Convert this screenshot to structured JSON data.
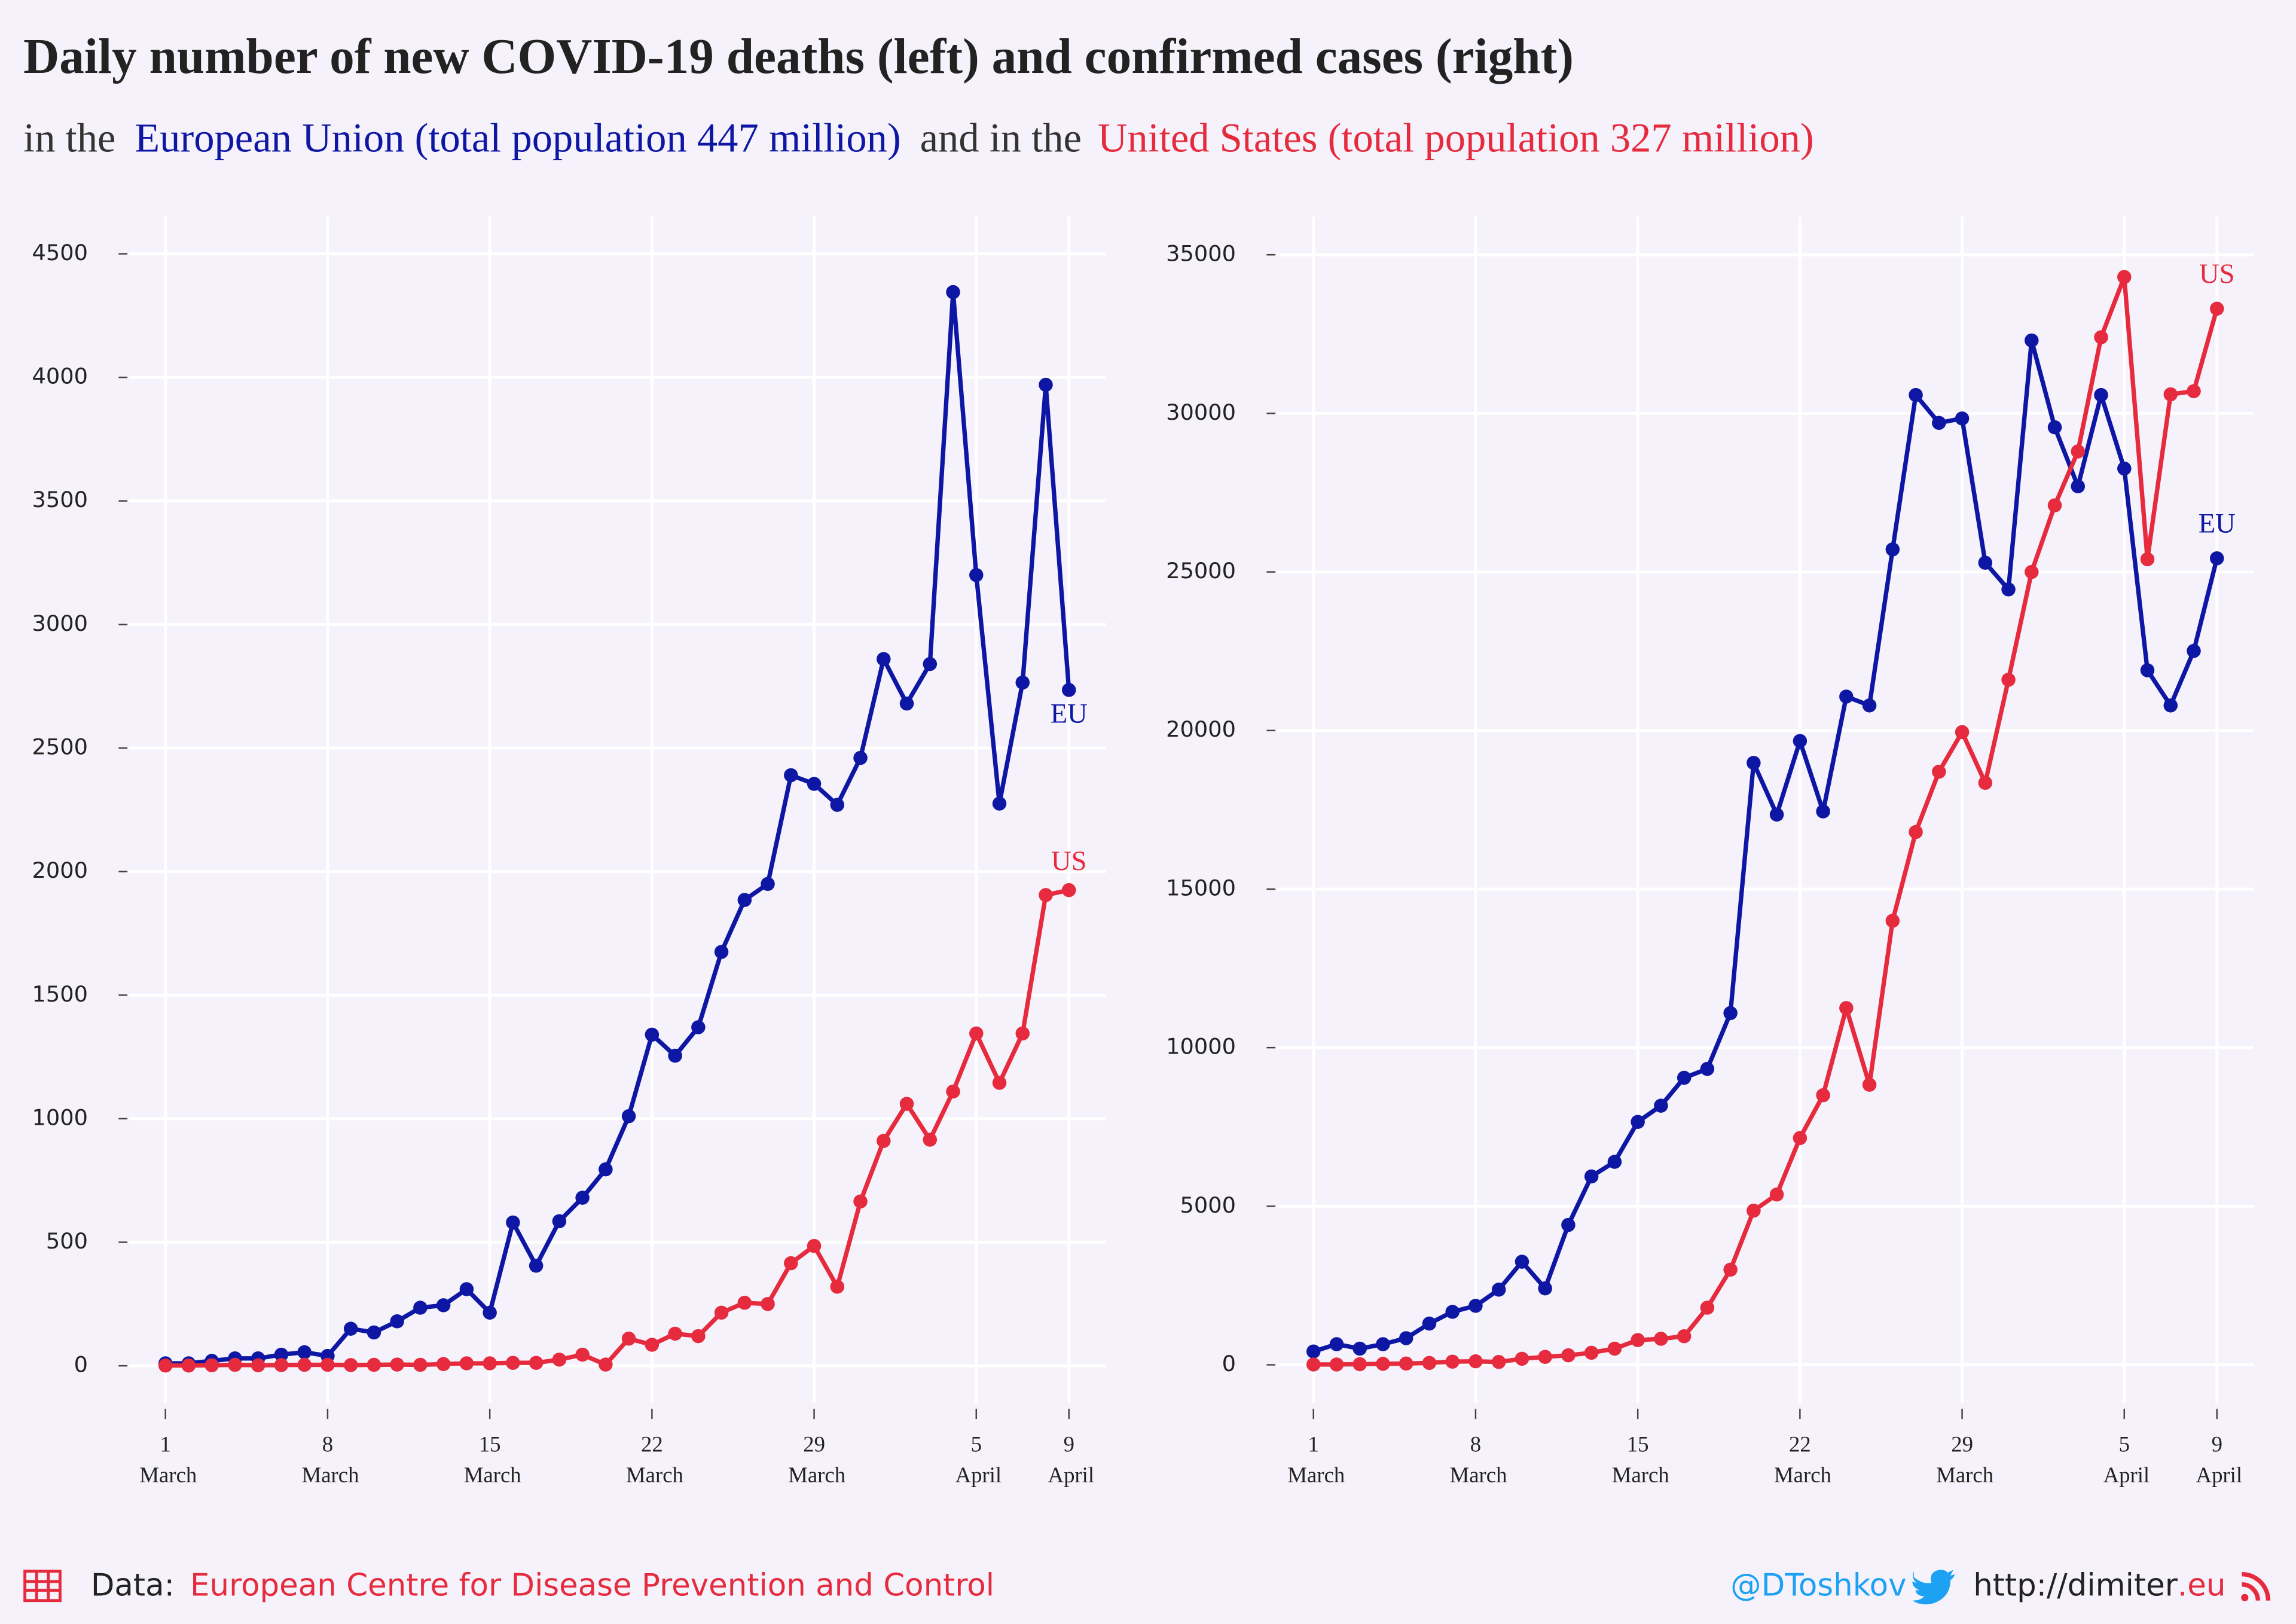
{
  "header": {
    "title": "Daily number of new COVID-19 deaths (left) and confirmed cases (right)",
    "subtitle": [
      "in the",
      "European Union (total population 447 million)",
      "and in the",
      "United States (total population 327 million)"
    ]
  },
  "chart_data": [
    {
      "type": "line",
      "categories": [
        "1 March",
        null,
        null,
        null,
        null,
        null,
        null,
        "8 March",
        null,
        null,
        null,
        null,
        null,
        null,
        "15 March",
        null,
        null,
        null,
        null,
        null,
        null,
        "22 March",
        null,
        null,
        null,
        null,
        null,
        null,
        "29 March",
        null,
        null,
        null,
        null,
        null,
        null,
        "5 April",
        null,
        null,
        null,
        "9 April"
      ],
      "series": [
        {
          "name": "EU",
          "color": "#0d17a3",
          "values": [
            10,
            10,
            20,
            30,
            30,
            45,
            55,
            40,
            150,
            135,
            180,
            235,
            245,
            310,
            215,
            580,
            405,
            585,
            680,
            795,
            1010,
            1340,
            1255,
            1370,
            1675,
            1885,
            1950,
            2390,
            2355,
            2270,
            2460,
            2860,
            2680,
            2840,
            4345,
            3200,
            2275,
            2765,
            3970,
            2735
          ]
        },
        {
          "name": "US",
          "color": "#e52b3d",
          "values": [
            1,
            1,
            2,
            4,
            2,
            3,
            4,
            4,
            3,
            4,
            5,
            4,
            7,
            10,
            10,
            12,
            12,
            25,
            45,
            5,
            110,
            85,
            130,
            120,
            215,
            255,
            250,
            415,
            485,
            320,
            665,
            910,
            1060,
            915,
            1110,
            1345,
            1145,
            1345,
            1905,
            1925
          ]
        }
      ],
      "ylim": [
        -150,
        4650
      ],
      "yticks": [
        0,
        500,
        1000,
        1500,
        2000,
        2500,
        3000,
        3500,
        4000,
        4500
      ],
      "grid": true
    },
    {
      "type": "line",
      "categories": [
        "1 March",
        null,
        null,
        null,
        null,
        null,
        null,
        "8 March",
        null,
        null,
        null,
        null,
        null,
        null,
        "15 March",
        null,
        null,
        null,
        null,
        null,
        null,
        "22 March",
        null,
        null,
        null,
        null,
        null,
        null,
        "29 March",
        null,
        null,
        null,
        null,
        null,
        null,
        "5 April",
        null,
        null,
        null,
        "9 April"
      ],
      "series": [
        {
          "name": "EU",
          "color": "#0d17a3",
          "values": [
            420,
            650,
            510,
            650,
            840,
            1300,
            1670,
            1860,
            2370,
            3250,
            2410,
            4410,
            5940,
            6400,
            7660,
            8170,
            9050,
            9330,
            11090,
            18980,
            17350,
            19670,
            17450,
            21070,
            20790,
            25710,
            30580,
            29700,
            29840,
            25290,
            24450,
            32300,
            29560,
            27700,
            30580,
            28260,
            21900,
            20790,
            22510,
            25430
          ]
        },
        {
          "name": "US",
          "color": "#e52b3d",
          "values": [
            10,
            10,
            20,
            30,
            40,
            60,
            100,
            110,
            90,
            190,
            250,
            300,
            380,
            510,
            780,
            820,
            900,
            1800,
            3000,
            4860,
            5370,
            7150,
            8500,
            11250,
            8830,
            14000,
            16800,
            18700,
            19950,
            18350,
            21600,
            25000,
            27100,
            28800,
            32400,
            34300,
            25400,
            30600,
            30700,
            33300
          ]
        }
      ],
      "ylim": [
        -1200,
        36200
      ],
      "yticks": [
        0,
        5000,
        10000,
        15000,
        20000,
        25000,
        30000,
        35000
      ],
      "grid": true
    }
  ],
  "footer": {
    "source_label": "Data:",
    "source": "European Centre for Disease Prevention and Control",
    "twitter": "@DToshkov",
    "site": "http://dimiter",
    "site_tld": ".eu"
  }
}
